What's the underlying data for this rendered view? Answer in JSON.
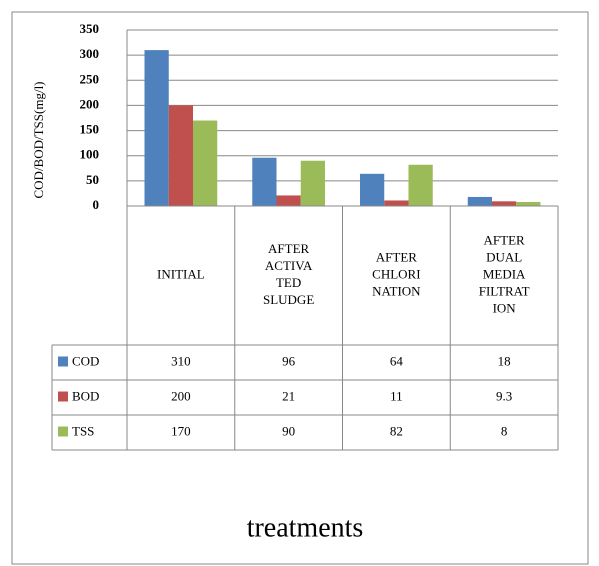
{
  "chart_data": {
    "type": "bar",
    "ylabel": "COD/BOD/TSS(mg/l)",
    "xlabel": "treatments",
    "categories": [
      "INITIAL",
      "AFTER\nACTIVA\nTED\nSLUDGE",
      "AFTER\nCHLORI\nNATION",
      "AFTER\nDUAL\nMEDIA\nFILTRAT\nION"
    ],
    "series": [
      {
        "name": "COD",
        "color": "#4f81bd",
        "values": [
          310,
          96,
          64,
          18
        ]
      },
      {
        "name": "BOD",
        "color": "#c0504d",
        "values": [
          200,
          21,
          11,
          9.3
        ]
      },
      {
        "name": "TSS",
        "color": "#9bbb59",
        "values": [
          170,
          90,
          82,
          8
        ]
      }
    ],
    "ylim": [
      0,
      350
    ],
    "yticks": [
      0,
      50,
      100,
      150,
      200,
      250,
      300,
      350
    ],
    "grid": true,
    "data_table": true
  }
}
